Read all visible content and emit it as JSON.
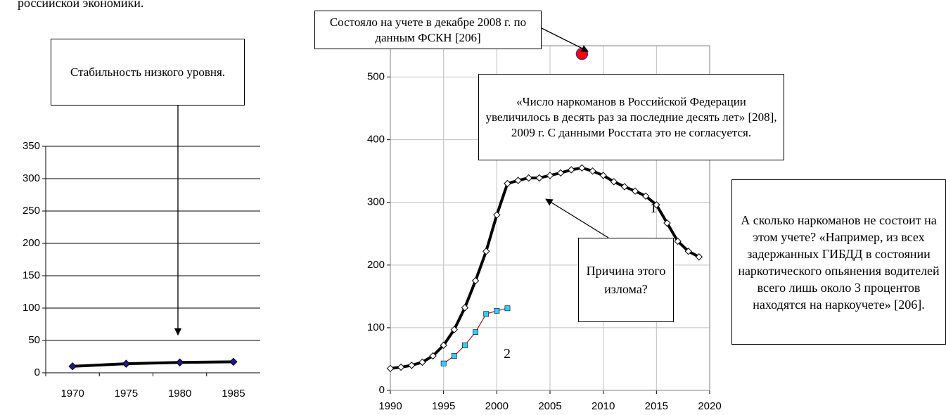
{
  "heading": "российской экономики.",
  "chart_data": [
    {
      "type": "line",
      "categories": [
        "1970",
        "1975",
        "1980",
        "1985"
      ],
      "series": [
        {
          "color": "#000000",
          "marker": "diamond",
          "marker_color": "#1a1a8c",
          "values": [
            10,
            14,
            16,
            17
          ]
        }
      ],
      "ylim": [
        0,
        350
      ],
      "yticks": [
        0,
        50,
        100,
        150,
        200,
        250,
        300,
        350
      ],
      "grid": true,
      "annotations": [
        {
          "text": "Стабильность низкого уровня."
        }
      ]
    },
    {
      "type": "line",
      "x": null,
      "xlim": [
        1990,
        2020
      ],
      "xticks": [
        1990,
        1995,
        2000,
        2005,
        2010,
        2015,
        2020
      ],
      "ylim": [
        0,
        550
      ],
      "yticks": [
        0,
        100,
        200,
        300,
        400,
        500
      ],
      "grid": true,
      "series": [
        {
          "color": "#000000",
          "marker": "diamond",
          "marker_color": "#ffffff",
          "x": [
            1990,
            1991,
            1992,
            1993,
            1994,
            1995,
            1996,
            1997,
            1998,
            1999,
            2000,
            2001,
            2002,
            2003,
            2004,
            2005,
            2006,
            2007,
            2008,
            2009,
            2010,
            2011,
            2012,
            2013,
            2014,
            2015,
            2016,
            2017,
            2018,
            2019
          ],
          "values": [
            35,
            37,
            40,
            45,
            55,
            72,
            97,
            132,
            175,
            222,
            280,
            330,
            335,
            339,
            339,
            343,
            347,
            352,
            355,
            350,
            343,
            333,
            325,
            318,
            310,
            296,
            267,
            238,
            222,
            213
          ]
        },
        {
          "color": "#a0282d",
          "marker": "square",
          "marker_color": "#33ccff",
          "x": [
            1995,
            1996,
            1997,
            1998,
            1999,
            2000,
            2001
          ],
          "values": [
            43,
            55,
            72,
            93,
            122,
            127,
            131
          ]
        },
        {
          "color": "#ff0000",
          "marker": "circle",
          "marker_color": "#ff0000",
          "x": [
            2008
          ],
          "values": [
            537
          ]
        }
      ],
      "annotations": [
        {
          "text": "Состояло на учете в декабре 2008 г. по данным ФСКН [206]"
        },
        {
          "text": "«Число наркоманов в Российской Федерации увеличилось в десять раз за последние десять лет» [208], 2009 г. С данными Росстата это не согласуется."
        },
        {
          "text": "Причина этого излома?"
        },
        {
          "text": "А сколько наркоманов не состоит на этом учете? «Например, из всех задержанных ГИБДД в состоянии наркотического опьянения водителей всего лишь около 3 процентов находятся на наркоучете» [206]."
        },
        {
          "text": "1"
        },
        {
          "text": "2"
        }
      ]
    }
  ]
}
